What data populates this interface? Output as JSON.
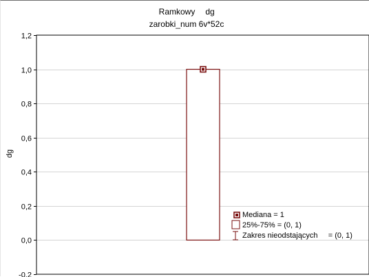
{
  "chart_data": {
    "type": "box",
    "title_line1": "Ramkowy",
    "title_var": "dg",
    "subtitle": "zarobki_num 6v*52c",
    "ylabel": "dg",
    "xlabel": "",
    "ylim": [
      -0.2,
      1.2
    ],
    "yticks": [
      -0.2,
      0.0,
      0.2,
      0.4,
      0.6,
      0.8,
      1.0,
      1.2
    ],
    "ytick_labels": [
      "-0,2",
      "0,0",
      "0,2",
      "0,4",
      "0,6",
      "0,8",
      "1,0",
      "1,2"
    ],
    "grid": true,
    "series": [
      {
        "median": 1,
        "q1": 0,
        "q3": 1,
        "whisker_low": 0,
        "whisker_high": 1
      }
    ],
    "legend": {
      "placement": "bottom-right",
      "median": "Mediana = 1",
      "box": "25%-75%     = (0, 1)",
      "whisker": "Zakres nieodstających     = (0, 1)"
    },
    "colors": {
      "box": "#7a0f0f",
      "grid": "#d4d4d4",
      "frame": "#000000"
    }
  }
}
